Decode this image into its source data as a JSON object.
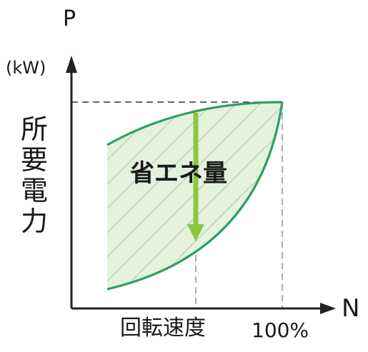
{
  "y_axis": {
    "symbol": "P",
    "unit": "(kW)",
    "label_chars": [
      "所",
      "要",
      "電",
      "力"
    ]
  },
  "x_axis": {
    "symbol": "N",
    "label": "回転速度",
    "max_label": "100%"
  },
  "region": {
    "label": "省エネ量"
  },
  "colors": {
    "curve": "#2e9e64",
    "fill": "#e4f2dc",
    "hatch": "#a9c9b1",
    "arrow": "#8cc63f",
    "axis": "#222222",
    "dash": "#888888"
  }
}
